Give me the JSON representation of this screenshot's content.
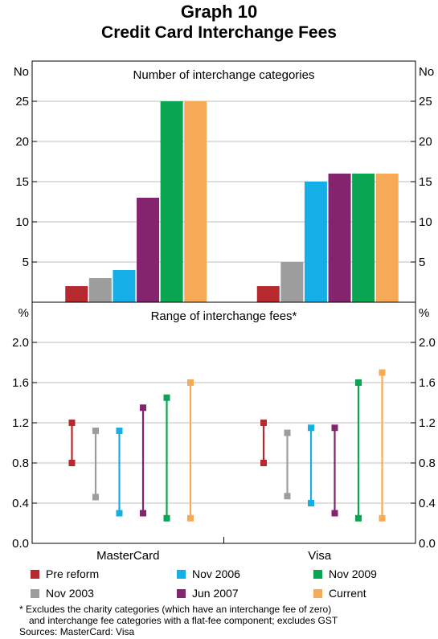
{
  "title": "Graph 10",
  "subtitle": "Credit Card Interchange Fees",
  "series_names": [
    "Pre reform",
    "Nov 2003",
    "Nov 2006",
    "Jun 2007",
    "Nov 2009",
    "Current"
  ],
  "series_colors": [
    "#b5292f",
    "#9d9d9d",
    "#16aee7",
    "#84246f",
    "#0aa552",
    "#f6aa57"
  ],
  "chart_data": [
    {
      "type": "bar",
      "title": "Number of interchange categories",
      "ylabel_left": "No",
      "ylabel_right": "No",
      "categories": [
        "MasterCard",
        "Visa"
      ],
      "ylim": [
        0,
        30
      ],
      "yticks": [
        "5",
        "10",
        "15",
        "20",
        "25"
      ],
      "series": [
        {
          "name": "Pre reform",
          "values": [
            2,
            2
          ]
        },
        {
          "name": "Nov 2003",
          "values": [
            3,
            5
          ]
        },
        {
          "name": "Nov 2006",
          "values": [
            4,
            15
          ]
        },
        {
          "name": "Jun 2007",
          "values": [
            13,
            16
          ]
        },
        {
          "name": "Nov 2009",
          "values": [
            25,
            16
          ]
        },
        {
          "name": "Current",
          "values": [
            25,
            16
          ]
        }
      ]
    },
    {
      "type": "range",
      "title": "Range of interchange fees*",
      "ylabel_left": "%",
      "ylabel_right": "%",
      "categories": [
        "MasterCard",
        "Visa"
      ],
      "ylim": [
        0,
        2.4
      ],
      "yticks": [
        "0.0",
        "0.4",
        "0.8",
        "1.2",
        "1.6",
        "2.0"
      ],
      "series": [
        {
          "name": "Pre reform",
          "ranges": [
            [
              0.8,
              1.2
            ],
            [
              0.8,
              1.2
            ]
          ]
        },
        {
          "name": "Nov 2003",
          "ranges": [
            [
              0.46,
              1.12
            ],
            [
              0.47,
              1.1
            ]
          ]
        },
        {
          "name": "Nov 2006",
          "ranges": [
            [
              0.3,
              1.12
            ],
            [
              0.4,
              1.15
            ]
          ]
        },
        {
          "name": "Jun 2007",
          "ranges": [
            [
              0.3,
              1.35
            ],
            [
              0.3,
              1.15
            ]
          ]
        },
        {
          "name": "Nov 2009",
          "ranges": [
            [
              0.25,
              1.45
            ],
            [
              0.25,
              1.6
            ]
          ]
        },
        {
          "name": "Current",
          "ranges": [
            [
              0.25,
              1.6
            ],
            [
              0.25,
              1.7
            ]
          ]
        }
      ]
    }
  ],
  "footnote_line1": "*   Excludes the charity categories (which have an interchange fee of zero)",
  "footnote_line2": "and interchange fee categories with a flat-fee component; excludes GST",
  "sources": "Sources: MasterCard: Visa"
}
